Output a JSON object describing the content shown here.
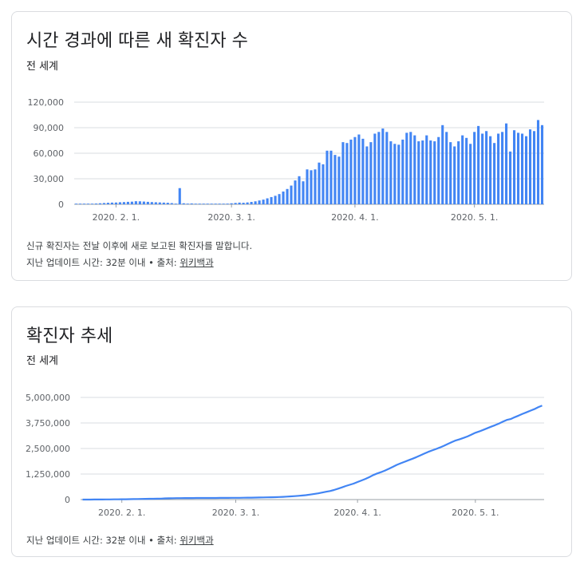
{
  "cards": [
    {
      "title": "시간 경과에 따른 새 확진자 수",
      "subtitle": "전 세계",
      "note": "신규 확진자는 전날 이후에 새로 보고된 확진자를 말합니다.",
      "update_text": "지난 업데이트 시간: 32분 이내",
      "separator": "•",
      "source_label": "출처:",
      "source_link": "위키백과"
    },
    {
      "title": "확진자 추세",
      "subtitle": "전 세계",
      "update_text": "지난 업데이트 시간: 32분 이내",
      "separator": "•",
      "source_label": "출처:",
      "source_link": "위키백과"
    }
  ],
  "colors": {
    "series": "#4285f4",
    "grid": "#dadce0",
    "tick": "#5f6368"
  },
  "chart_data": [
    {
      "type": "bar",
      "ylim": [
        0,
        120000
      ],
      "yticks": [
        "120,000",
        "90,000",
        "60,000",
        "30,000",
        "0"
      ],
      "ytick_values": [
        120000,
        90000,
        60000,
        30000,
        0
      ],
      "xticks": [
        "2020. 2. 1.",
        "2020. 3. 1.",
        "2020. 4. 1.",
        "2020. 5. 1."
      ],
      "xtick_index": [
        10,
        39,
        70,
        100
      ],
      "values": [
        100,
        200,
        300,
        500,
        700,
        900,
        1200,
        1500,
        1800,
        2000,
        2100,
        2400,
        2600,
        2900,
        3100,
        3600,
        3500,
        3200,
        2900,
        2600,
        2400,
        2200,
        2000,
        1800,
        1400,
        800,
        19000,
        1200,
        800,
        1000,
        700,
        500,
        400,
        300,
        400,
        300,
        300,
        600,
        800,
        1200,
        1600,
        2000,
        1800,
        2200,
        2800,
        3500,
        4500,
        5500,
        7000,
        8500,
        10000,
        12000,
        15000,
        18000,
        22000,
        28000,
        33000,
        27000,
        41000,
        40000,
        41000,
        49000,
        47000,
        63000,
        63000,
        58000,
        56000,
        73000,
        72000,
        76000,
        79000,
        82000,
        77000,
        68000,
        73000,
        83000,
        85000,
        89000,
        85000,
        74000,
        71000,
        70000,
        76000,
        84000,
        85000,
        81000,
        74000,
        75000,
        81000,
        75000,
        74000,
        79000,
        93000,
        85000,
        73000,
        68000,
        74000,
        81000,
        78000,
        71000,
        85000,
        92000,
        83000,
        86000,
        80000,
        72000,
        83000,
        85000,
        95000,
        62000,
        87000,
        84000,
        83000,
        80000,
        88000,
        86000,
        99000,
        93000
      ]
    },
    {
      "type": "line",
      "ylim": [
        0,
        5000000
      ],
      "yticks": [
        "5,000,000",
        "3,750,000",
        "2,500,000",
        "1,250,000",
        "0"
      ],
      "ytick_values": [
        5000000,
        3750000,
        2500000,
        1250000,
        0
      ],
      "xticks": [
        "2020. 2. 1.",
        "2020. 3. 1.",
        "2020. 4. 1.",
        "2020. 5. 1."
      ],
      "xtick_index": [
        10,
        39,
        70,
        100
      ],
      "values": [
        600,
        1000,
        1400,
        2000,
        2800,
        4600,
        6100,
        8100,
        9800,
        11900,
        14600,
        17400,
        20600,
        24600,
        28300,
        31500,
        34900,
        37600,
        40600,
        43100,
        45200,
        60400,
        64400,
        67100,
        69200,
        71300,
        73300,
        75200,
        75700,
        76700,
        77200,
        78600,
        78900,
        79400,
        80000,
        80400,
        81300,
        82400,
        84100,
        85200,
        87300,
        90000,
        92600,
        95300,
        98400,
        102000,
        106100,
        110000,
        114100,
        118200,
        125900,
        134200,
        145400,
        156600,
        169500,
        182400,
        198800,
        218800,
        246900,
        275400,
        305800,
        342300,
        382500,
        418000,
        467600,
        529600,
        593400,
        662700,
        722400,
        782300,
        857600,
        932600,
        1013100,
        1095900,
        1197400,
        1276300,
        1344700,
        1422900,
        1506500,
        1601000,
        1698400,
        1777800,
        1853100,
        1925400,
        2000000,
        2080000,
        2165000,
        2251000,
        2335000,
        2407000,
        2475000,
        2552000,
        2631000,
        2727000,
        2811000,
        2896000,
        2955000,
        3020000,
        3088000,
        3180000,
        3270000,
        3336000,
        3412000,
        3490000,
        3567000,
        3639000,
        3722000,
        3811000,
        3900000,
        3943000,
        4030000,
        4110000,
        4195000,
        4270000,
        4350000,
        4425000,
        4520000,
        4600000
      ]
    }
  ]
}
